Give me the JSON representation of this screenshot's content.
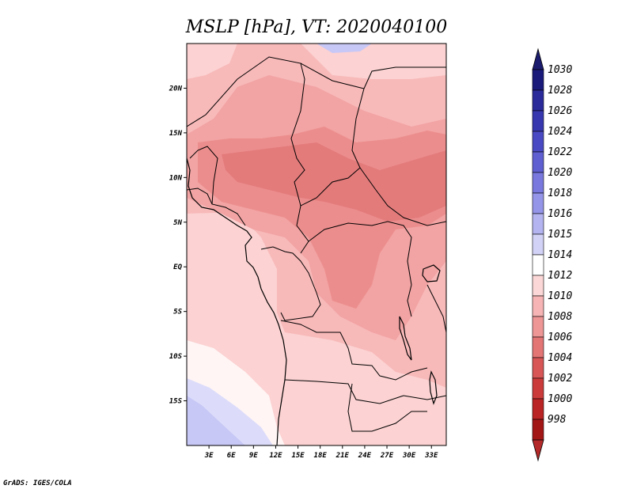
{
  "title": "MSLP [hPa], VT: 2020040100",
  "credit": "GrADS: IGES/COLA",
  "map": {
    "region": "Central and West Africa",
    "lon_labels": [
      "3E",
      "6E",
      "9E",
      "12E",
      "15E",
      "18E",
      "21E",
      "24E",
      "27E",
      "30E",
      "33E"
    ],
    "lat_labels": [
      "20N",
      "15N",
      "10N",
      "5N",
      "EQ",
      "5S",
      "10S",
      "15S"
    ],
    "lon_values": [
      3,
      6,
      9,
      12,
      15,
      18,
      21,
      24,
      27,
      30,
      33
    ],
    "lat_values": [
      20,
      15,
      10,
      5,
      0,
      -5,
      -10,
      -15
    ],
    "lon_range": [
      0,
      35
    ],
    "lat_range": [
      -20,
      25
    ]
  },
  "colorbar": {
    "labels": [
      "1030",
      "1028",
      "1026",
      "1024",
      "1022",
      "1020",
      "1018",
      "1016",
      "1015",
      "1014",
      "1012",
      "1010",
      "1008",
      "1006",
      "1004",
      "1002",
      "1000",
      "998"
    ],
    "colors": [
      "#1a1a7a",
      "#2a2a9a",
      "#3737b0",
      "#4949c3",
      "#5f5fd2",
      "#7878de",
      "#9494e8",
      "#b4b4f0",
      "#d2d2f7",
      "#ffffff",
      "#fbd7d7",
      "#f6b4b4",
      "#ee9595",
      "#e37575",
      "#d85656",
      "#cc3b3b",
      "#bb2424",
      "#a31616"
    ],
    "top_color": "#1c1c6e",
    "bottom_color": "#b42a2a"
  },
  "fill_colors": {
    "p1016": "#c8c8f6",
    "p1015": "#dcdcfa",
    "p1014": "#fff5f5",
    "p1012": "#fcd2d2",
    "p1010": "#f8b9b9",
    "p1008": "#f2a3a3",
    "p1007": "#ec8d8d",
    "p1006": "#e37b7b"
  }
}
